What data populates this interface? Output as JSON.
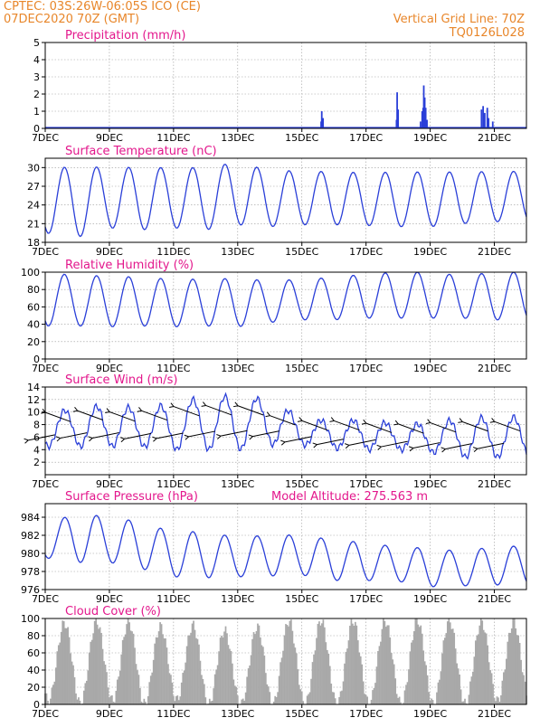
{
  "header": {
    "line1_left": "CPTEC:    03S:26W-06:05S   ICO (CE)",
    "line2_left": "07DEC2020  70Z (GMT)",
    "line1_right": "Vertical Grid Line: 70Z",
    "line2_right": "TQ0126L028"
  },
  "colors": {
    "header": "#e8862a",
    "title": "#e3178c",
    "series": "#2a3fd8",
    "cloud": "#a9a9a9",
    "grid": "#9a9a9a"
  },
  "x_axis": {
    "ticks": [
      "7DEC",
      "9DEC",
      "11DEC",
      "13DEC",
      "15DEC",
      "17DEC",
      "19DEC",
      "21DEC"
    ],
    "tick_days": [
      0,
      2,
      4,
      6,
      8,
      10,
      12,
      14
    ],
    "range_days": [
      0,
      15
    ]
  },
  "chart_data": [
    {
      "id": "precip",
      "type": "bar",
      "title": "Precipitation (mm/h)",
      "ylim": [
        0,
        5
      ],
      "yticks": [
        0,
        1,
        2,
        3,
        4,
        5
      ],
      "x": [
        8.6,
        8.62,
        8.66,
        10.95,
        10.97,
        11.0,
        11.7,
        11.75,
        11.78,
        11.8,
        11.83,
        11.86,
        11.9,
        13.6,
        13.65,
        13.7,
        13.78,
        13.82,
        13.95
      ],
      "values": [
        0.4,
        1.0,
        0.6,
        0.5,
        2.1,
        1.1,
        0.4,
        1.0,
        1.2,
        2.5,
        1.8,
        1.2,
        0.5,
        1.1,
        1.3,
        0.9,
        1.2,
        0.6,
        0.4
      ]
    },
    {
      "id": "temp",
      "type": "line",
      "title": "Surface Temperature (nC)",
      "ylim": [
        18,
        31.5
      ],
      "yticks": [
        18,
        21,
        24,
        27,
        30
      ],
      "daily_max": [
        30.0,
        30.1,
        30.1,
        30.0,
        30.0,
        30.0,
        30.9,
        29.5,
        29.5,
        29.3,
        29.2,
        29.3,
        29.3,
        29.3,
        29.4
      ],
      "daily_min": [
        19.5,
        18.8,
        20.3,
        20.0,
        20.3,
        20.0,
        20.8,
        20.5,
        20.8,
        20.8,
        20.7,
        20.5,
        20.5,
        21.0,
        21.3
      ]
    },
    {
      "id": "rh",
      "type": "line",
      "title": "Relative Humidity (%)",
      "ylim": [
        0,
        100
      ],
      "yticks": [
        0,
        20,
        40,
        60,
        80,
        100
      ],
      "daily_max": [
        100,
        96,
        96,
        94,
        92,
        92,
        93,
        90,
        92,
        94,
        98,
        100,
        100,
        96,
        100
      ],
      "daily_min": [
        38,
        38,
        37,
        38,
        37,
        38,
        37,
        42,
        45,
        45,
        47,
        47,
        47,
        47,
        45
      ]
    },
    {
      "id": "wind",
      "type": "line",
      "title": "Surface Wind (m/s)",
      "ylim": [
        0,
        14
      ],
      "yticks": [
        2,
        4,
        6,
        8,
        10,
        12,
        14
      ],
      "daily_max": [
        9.5,
        10.8,
        11.0,
        10.6,
        11.3,
        12.5,
        12.5,
        12.0,
        9.0,
        8.5,
        8.8,
        8.0,
        8.2,
        9.0,
        9.2
      ],
      "daily_min": [
        4.5,
        4.5,
        4.5,
        4.5,
        4.0,
        4.0,
        4.0,
        4.8,
        4.8,
        4.2,
        4.0,
        4.0,
        3.6,
        2.8,
        2.8
      ]
    },
    {
      "id": "pressure",
      "type": "line",
      "title": "Surface Pressure (hPa)",
      "ylim": [
        976,
        985.5
      ],
      "yticks": [
        976,
        978,
        980,
        982,
        984
      ],
      "annotation": "Model Altitude: 275.563  m",
      "daily_max": [
        983.2,
        984.5,
        984.0,
        983.5,
        982.3,
        982.5,
        981.7,
        982.1,
        982.0,
        981.5,
        981.2,
        980.7,
        980.6,
        980.2,
        980.8
      ],
      "daily_min": [
        979.5,
        979.0,
        979.0,
        978.3,
        977.4,
        977.3,
        977.4,
        977.5,
        977.6,
        977.0,
        977.0,
        976.9,
        976.3,
        976.4,
        976.5
      ]
    },
    {
      "id": "cloud",
      "type": "area",
      "title": "Cloud Cover (%)",
      "ylim": [
        0,
        100
      ],
      "yticks": [
        0,
        20,
        40,
        60,
        80,
        100
      ],
      "daily_max": [
        95,
        95,
        98,
        95,
        88,
        95,
        80,
        97,
        97,
        98,
        97,
        97,
        99,
        97,
        96
      ],
      "daily_min": [
        4,
        0,
        5,
        0,
        6,
        0,
        0,
        0,
        0,
        0,
        0,
        0,
        0,
        0,
        4
      ]
    }
  ]
}
